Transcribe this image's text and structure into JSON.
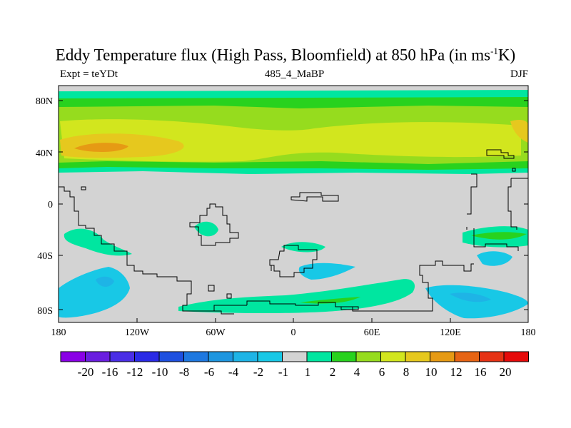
{
  "title": {
    "main": "Eddy Temperature flux (High Pass, Bloomfield) at 850 hPa (in ms",
    "sup": "-1",
    "end": "K)"
  },
  "subtitles": {
    "left": "Expt = teYDt",
    "center": "485_4_MaBP",
    "right": "DJF"
  },
  "map": {
    "y_tick_labels": [
      "80N",
      "40N",
      "0",
      "40S",
      "80S"
    ],
    "x_tick_labels": [
      "180",
      "120W",
      "60W",
      "0",
      "60E",
      "120E",
      "180"
    ],
    "background_color": "#d3d3d3"
  },
  "colorbar": {
    "labels": [
      "-20",
      "-16",
      "-12",
      "-10",
      "-8",
      "-6",
      "-4",
      "-2",
      "-1",
      "1",
      "2",
      "4",
      "6",
      "8",
      "10",
      "12",
      "16",
      "20"
    ],
    "colors": [
      "#8a00e6",
      "#6a1ee0",
      "#4a2ee6",
      "#2a2ae6",
      "#1e50e0",
      "#1e78e0",
      "#1e96e0",
      "#1eb4e6",
      "#18c8e6",
      "#d3d3d3",
      "#00e6a0",
      "#28d21e",
      "#96dc1e",
      "#d2e61e",
      "#e6c81e",
      "#e69a14",
      "#e66414",
      "#e63214",
      "#e60a0a"
    ]
  }
}
